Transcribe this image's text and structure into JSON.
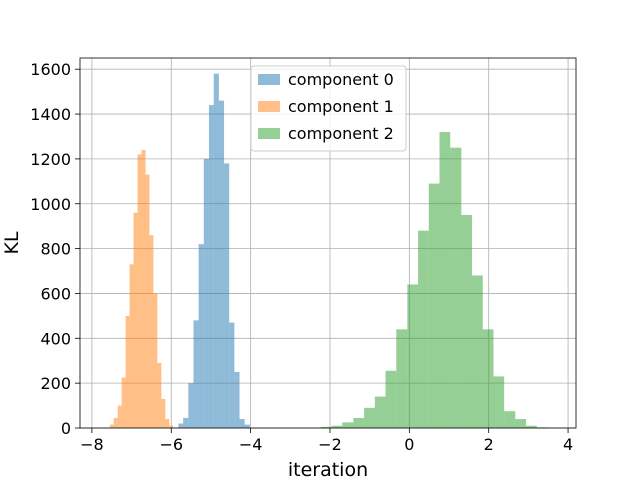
{
  "chart_data": {
    "type": "bar",
    "subtype": "histogram",
    "xlabel": "iteration",
    "ylabel": "KL",
    "xlim": [
      -8.3,
      4.2
    ],
    "ylim": [
      0,
      1650
    ],
    "xticks": [
      -8,
      -6,
      -4,
      -2,
      0,
      2,
      4
    ],
    "xtick_labels": [
      "−8",
      "−6",
      "−4",
      "−2",
      "0",
      "2",
      "4"
    ],
    "yticks": [
      0,
      200,
      400,
      600,
      800,
      1000,
      1200,
      1400,
      1600
    ],
    "ytick_labels": [
      "0",
      "200",
      "400",
      "600",
      "800",
      "1000",
      "1200",
      "1400",
      "1600"
    ],
    "grid": true,
    "legend_position": "top-center",
    "series": [
      {
        "name": "component 0",
        "color": "#1f77b4",
        "opacity": 0.5,
        "bins": [
          {
            "x0": -5.82,
            "x1": -5.7,
            "count": 20
          },
          {
            "x0": -5.7,
            "x1": -5.57,
            "count": 45
          },
          {
            "x0": -5.57,
            "x1": -5.44,
            "count": 200
          },
          {
            "x0": -5.44,
            "x1": -5.31,
            "count": 480
          },
          {
            "x0": -5.31,
            "x1": -5.18,
            "count": 820
          },
          {
            "x0": -5.18,
            "x1": -5.05,
            "count": 1200
          },
          {
            "x0": -5.05,
            "x1": -4.93,
            "count": 1440
          },
          {
            "x0": -4.93,
            "x1": -4.8,
            "count": 1580
          },
          {
            "x0": -4.8,
            "x1": -4.67,
            "count": 1460
          },
          {
            "x0": -4.67,
            "x1": -4.54,
            "count": 1180
          },
          {
            "x0": -4.54,
            "x1": -4.41,
            "count": 470
          },
          {
            "x0": -4.41,
            "x1": -4.28,
            "count": 250
          },
          {
            "x0": -4.28,
            "x1": -4.15,
            "count": 40
          },
          {
            "x0": -4.15,
            "x1": -4.02,
            "count": 15
          }
        ]
      },
      {
        "name": "component 1",
        "color": "#ff7f0e",
        "opacity": 0.5,
        "bins": [
          {
            "x0": -7.55,
            "x1": -7.45,
            "count": 15
          },
          {
            "x0": -7.45,
            "x1": -7.35,
            "count": 45
          },
          {
            "x0": -7.35,
            "x1": -7.25,
            "count": 100
          },
          {
            "x0": -7.25,
            "x1": -7.15,
            "count": 225
          },
          {
            "x0": -7.15,
            "x1": -7.05,
            "count": 500
          },
          {
            "x0": -7.05,
            "x1": -6.95,
            "count": 730
          },
          {
            "x0": -6.95,
            "x1": -6.85,
            "count": 960
          },
          {
            "x0": -6.85,
            "x1": -6.75,
            "count": 1220
          },
          {
            "x0": -6.75,
            "x1": -6.65,
            "count": 1240
          },
          {
            "x0": -6.65,
            "x1": -6.55,
            "count": 1130
          },
          {
            "x0": -6.55,
            "x1": -6.45,
            "count": 860
          },
          {
            "x0": -6.45,
            "x1": -6.35,
            "count": 600
          },
          {
            "x0": -6.35,
            "x1": -6.25,
            "count": 290
          },
          {
            "x0": -6.25,
            "x1": -6.15,
            "count": 130
          },
          {
            "x0": -6.15,
            "x1": -6.05,
            "count": 40
          },
          {
            "x0": -6.05,
            "x1": -5.95,
            "count": 10
          }
        ]
      },
      {
        "name": "component 2",
        "color": "#2ca02c",
        "opacity": 0.5,
        "bins": [
          {
            "x0": -2.23,
            "x1": -1.96,
            "count": 5
          },
          {
            "x0": -1.96,
            "x1": -1.69,
            "count": 10
          },
          {
            "x0": -1.69,
            "x1": -1.41,
            "count": 25
          },
          {
            "x0": -1.41,
            "x1": -1.14,
            "count": 45
          },
          {
            "x0": -1.14,
            "x1": -0.87,
            "count": 90
          },
          {
            "x0": -0.87,
            "x1": -0.6,
            "count": 140
          },
          {
            "x0": -0.6,
            "x1": -0.33,
            "count": 255
          },
          {
            "x0": -0.33,
            "x1": -0.05,
            "count": 440
          },
          {
            "x0": -0.05,
            "x1": 0.22,
            "count": 640
          },
          {
            "x0": 0.22,
            "x1": 0.49,
            "count": 880
          },
          {
            "x0": 0.49,
            "x1": 0.76,
            "count": 1090
          },
          {
            "x0": 0.76,
            "x1": 1.03,
            "count": 1320
          },
          {
            "x0": 1.03,
            "x1": 1.31,
            "count": 1250
          },
          {
            "x0": 1.31,
            "x1": 1.58,
            "count": 950
          },
          {
            "x0": 1.58,
            "x1": 1.85,
            "count": 680
          },
          {
            "x0": 1.85,
            "x1": 2.12,
            "count": 440
          },
          {
            "x0": 2.12,
            "x1": 2.39,
            "count": 230
          },
          {
            "x0": 2.39,
            "x1": 2.67,
            "count": 75
          },
          {
            "x0": 2.67,
            "x1": 2.94,
            "count": 40
          },
          {
            "x0": 2.94,
            "x1": 3.21,
            "count": 10
          },
          {
            "x0": 3.21,
            "x1": 3.48,
            "count": 3
          }
        ]
      }
    ]
  }
}
